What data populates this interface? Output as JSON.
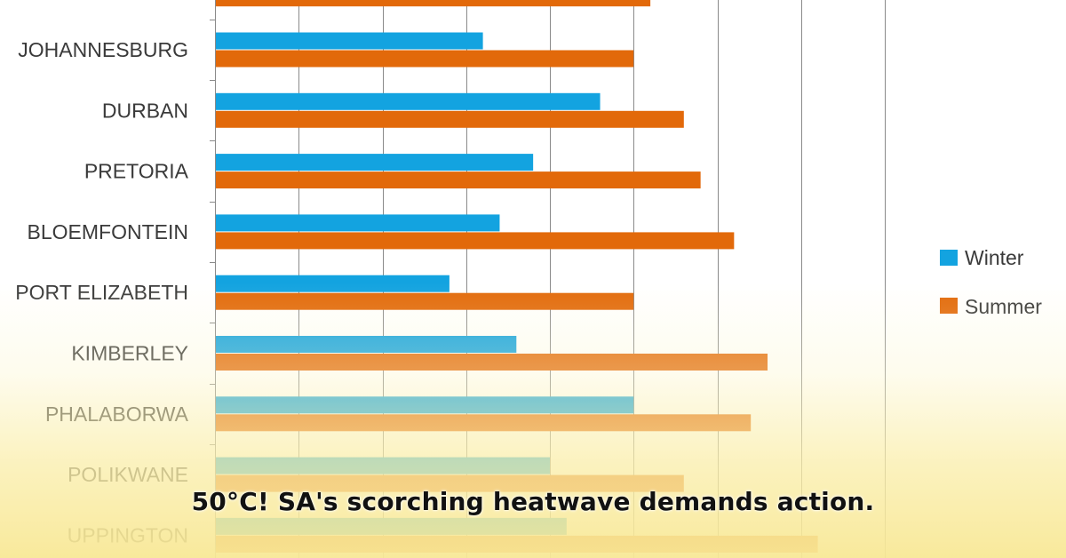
{
  "chart_data": {
    "type": "bar",
    "orientation": "horizontal",
    "categories": [
      "JOHANNESBURG",
      "DURBAN",
      "PRETORIA",
      "BLOEMFONTEIN",
      "PORT ELIZABETH",
      "KIMBERLEY",
      "PHALABORWA",
      "POLIKWANE",
      "UPPINGTON"
    ],
    "series": [
      {
        "name": "Winter",
        "color": "#13a3e0",
        "values": [
          16,
          23,
          19,
          17,
          14,
          18,
          25,
          20,
          21
        ]
      },
      {
        "name": "Summer",
        "color": "#e2690a",
        "values": [
          25,
          28,
          29,
          31,
          25,
          33,
          32,
          28,
          36
        ]
      }
    ],
    "partial_top_summer_value": 26,
    "xlim": [
      0,
      40
    ],
    "grid": true,
    "legend_position": "right"
  },
  "caption": "50°C! SA's scorching heatwave demands action."
}
